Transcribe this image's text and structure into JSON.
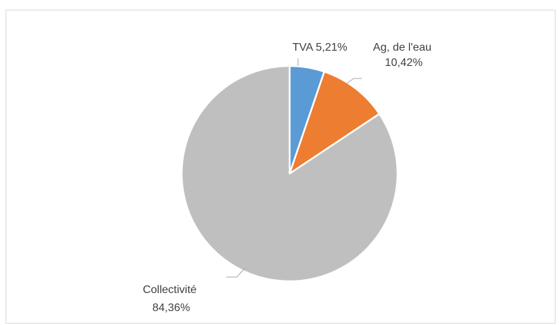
{
  "chart_data": {
    "type": "pie",
    "title": "",
    "slices": [
      {
        "name": "TVA",
        "label_name": "TVA",
        "label_value": "5,21%",
        "value": 5.21,
        "color": "#5b9bd5"
      },
      {
        "name": "Ag, de l'eau",
        "label_name": "Ag, de l'eau",
        "label_value": "10,42%",
        "value": 10.42,
        "color": "#ed7d31"
      },
      {
        "name": "Collectivité",
        "label_name": "Collectivité",
        "label_value": "84,36%",
        "value": 84.36,
        "color": "#bfbfbf"
      }
    ],
    "start_angle_deg": 0,
    "direction": "clockwise",
    "legend": "none",
    "slice_border_color": "#ffffff"
  }
}
